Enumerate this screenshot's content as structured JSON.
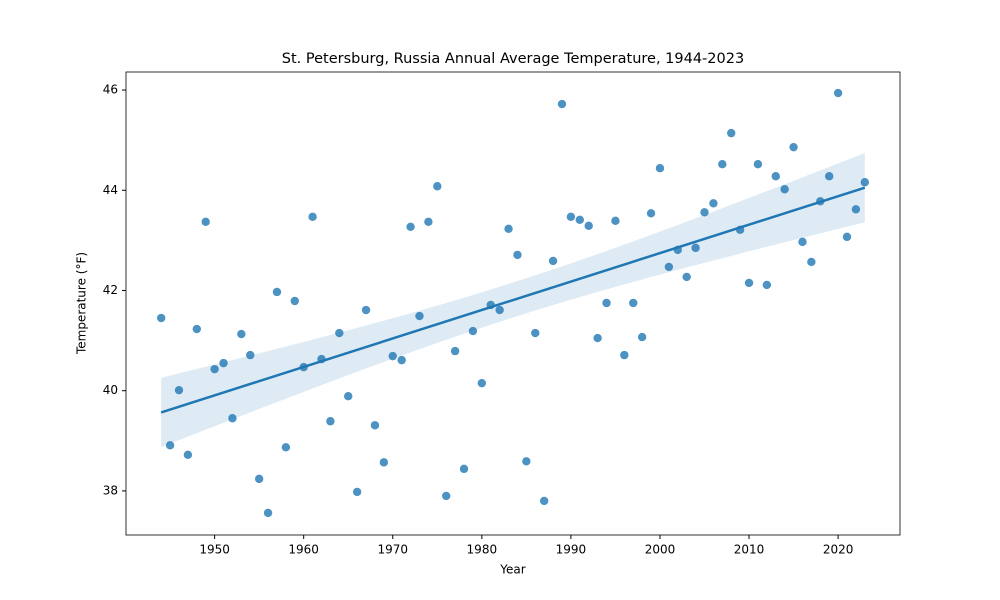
{
  "chart_data": {
    "type": "scatter",
    "title": "St. Petersburg, Russia Annual Average Temperature, 1944-2023",
    "xlabel": "Year",
    "ylabel": "Temperature (°F)",
    "color": "#1f77b4",
    "x": [
      1944,
      1945,
      1946,
      1947,
      1948,
      1949,
      1950,
      1951,
      1952,
      1953,
      1954,
      1955,
      1956,
      1957,
      1958,
      1959,
      1960,
      1961,
      1962,
      1963,
      1964,
      1965,
      1966,
      1967,
      1968,
      1969,
      1970,
      1971,
      1972,
      1973,
      1974,
      1975,
      1976,
      1977,
      1978,
      1979,
      1980,
      1981,
      1982,
      1983,
      1984,
      1985,
      1986,
      1987,
      1988,
      1989,
      1990,
      1991,
      1992,
      1993,
      1994,
      1995,
      1996,
      1997,
      1998,
      1999,
      2000,
      2001,
      2002,
      2003,
      2004,
      2005,
      2006,
      2007,
      2008,
      2009,
      2010,
      2011,
      2012,
      2013,
      2014,
      2015,
      2016,
      2017,
      2018,
      2019,
      2020,
      2021,
      2022,
      2023
    ],
    "values": [
      41.45,
      38.91,
      40.01,
      38.72,
      41.23,
      43.37,
      40.43,
      40.55,
      39.45,
      41.13,
      40.71,
      38.24,
      37.56,
      41.97,
      38.87,
      41.79,
      40.47,
      43.47,
      40.63,
      39.39,
      41.15,
      39.89,
      37.98,
      41.61,
      39.31,
      38.57,
      40.69,
      40.61,
      43.27,
      41.49,
      43.37,
      44.08,
      37.9,
      40.79,
      38.44,
      41.19,
      40.15,
      41.71,
      41.61,
      43.23,
      42.71,
      38.59,
      41.15,
      37.8,
      42.59,
      45.72,
      43.47,
      43.41,
      43.29,
      41.05,
      41.75,
      43.39,
      40.71,
      41.75,
      41.07,
      43.54,
      44.44,
      42.47,
      42.81,
      42.27,
      42.85,
      43.56,
      43.74,
      44.52,
      45.14,
      43.21,
      42.15,
      44.52,
      42.11,
      44.28,
      44.02,
      44.86,
      42.97,
      42.57,
      43.78,
      44.28,
      45.94,
      43.07,
      43.62,
      44.16
    ],
    "regression": true,
    "xlim": [
      1940.05,
      2026.95
    ],
    "xticks": [
      1950,
      1960,
      1970,
      1980,
      1990,
      2000,
      2010,
      2020
    ],
    "ylim": [
      37.12,
      46.36
    ],
    "yticks": [
      38,
      40,
      42,
      44,
      46
    ]
  }
}
